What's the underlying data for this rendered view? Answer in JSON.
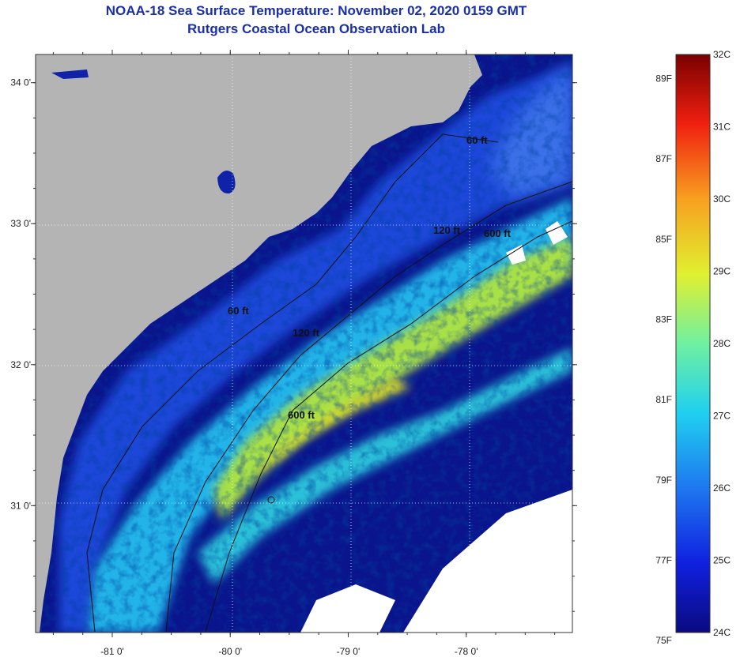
{
  "header": {
    "title": "NOAA-18 Sea Surface Temperature:  November 02, 2020 0159 GMT",
    "subtitle": "Rutgers Coastal Ocean Observation Lab"
  },
  "map": {
    "lon_range": [
      -81.65,
      -77.1
    ],
    "lat_range": [
      30.1,
      34.2
    ],
    "lon_ticks": [
      {
        "value": -81,
        "label": "-81 0'"
      },
      {
        "value": -80,
        "label": "-80 0'"
      },
      {
        "value": -79,
        "label": "-79 0'"
      },
      {
        "value": -78,
        "label": "-78 0'"
      }
    ],
    "lat_ticks": [
      {
        "value": 34,
        "label": "34 0'"
      },
      {
        "value": 33,
        "label": "33 0'"
      },
      {
        "value": 32,
        "label": "32 0'"
      },
      {
        "value": 31,
        "label": "31 0'"
      }
    ],
    "contour_labels": [
      "60 ft",
      "120 ft",
      "600 ft",
      "60 ft",
      "120 ft",
      "600 ft"
    ],
    "colors": {
      "land": "#b4b4b4",
      "cloud": "#ffffff",
      "dark_water": "#0a148c",
      "cool_water": "#1e50e6",
      "mid_water": "#28c8f0",
      "warm_water": "#c8e632"
    }
  },
  "colorbar": {
    "celsius_labels": [
      "32C",
      "31C",
      "30C",
      "29C",
      "28C",
      "27C",
      "26C",
      "25C",
      "24C"
    ],
    "fahrenheit_labels": [
      "89F",
      "87F",
      "85F",
      "83F",
      "81F",
      "79F",
      "77F",
      "75F"
    ],
    "min_c": 24,
    "max_c": 32
  }
}
